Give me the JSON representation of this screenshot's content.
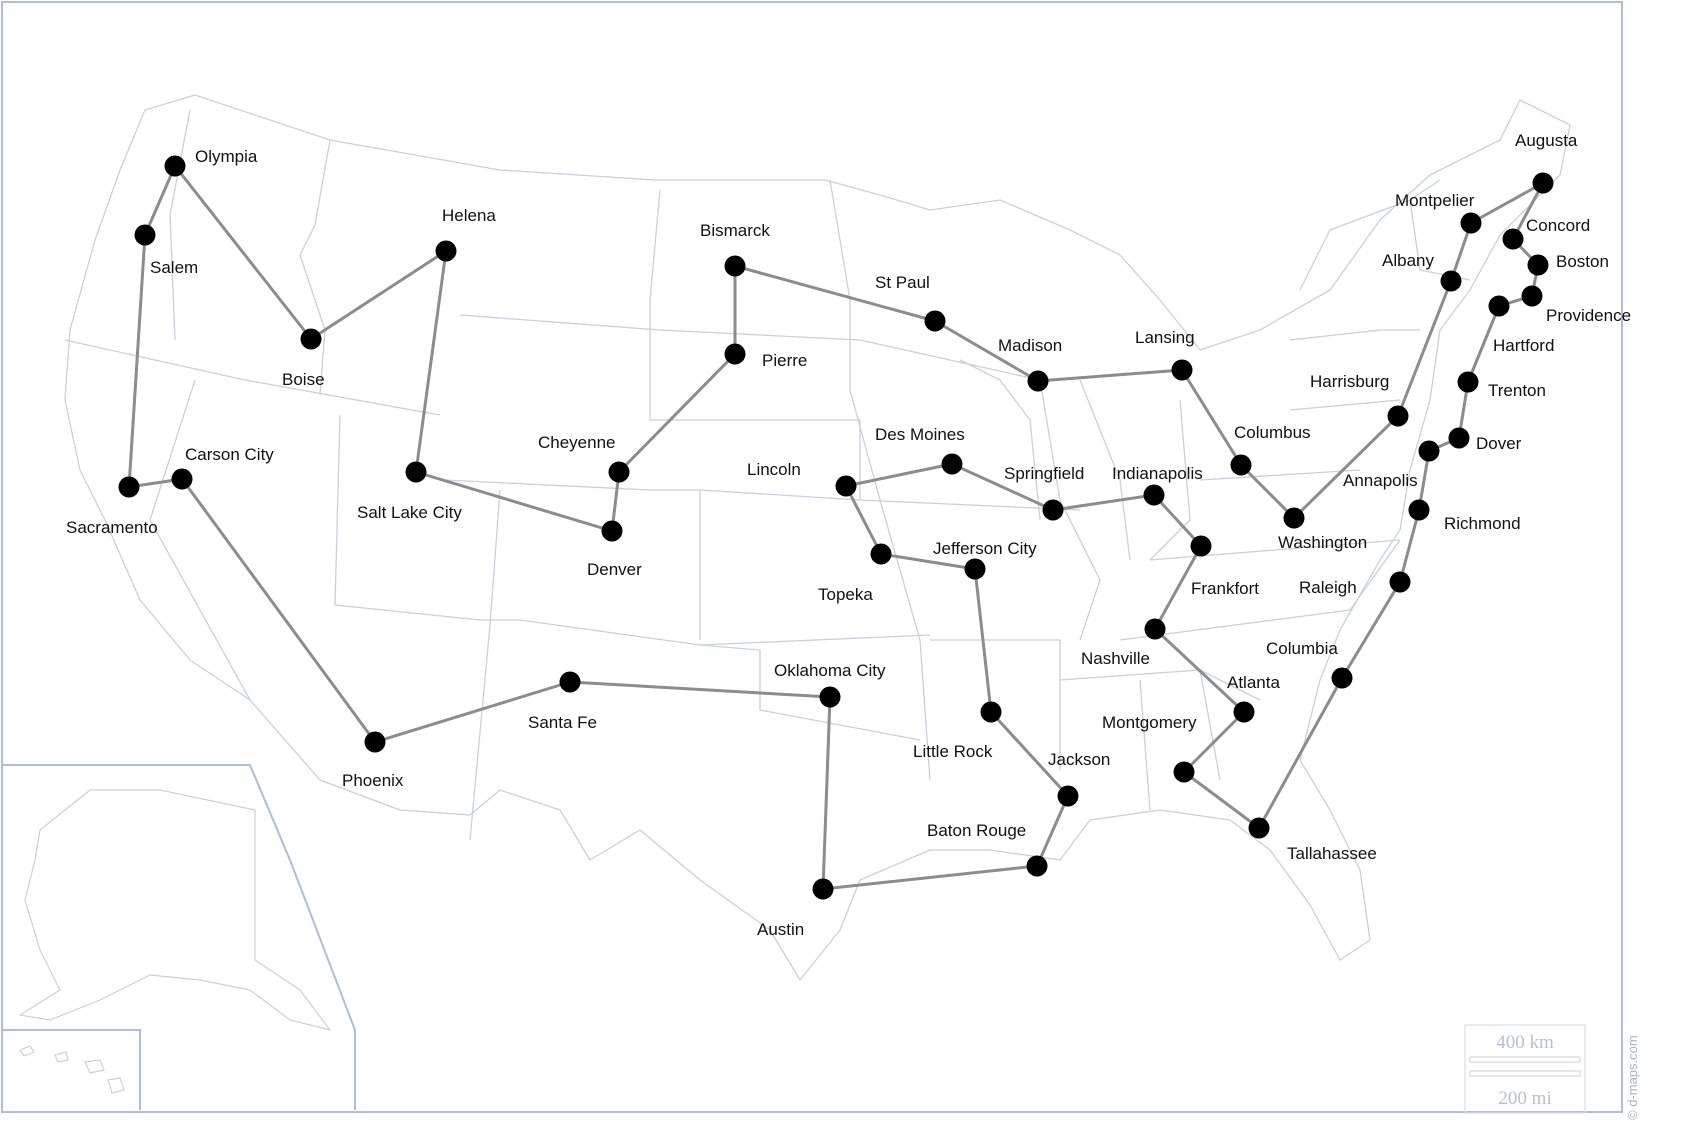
{
  "map": {
    "credit": "© d-maps.com",
    "scale_km": "400 km",
    "scale_mi": "200 mi",
    "colors": {
      "border": "#c8d0e0",
      "frame": "#aebdd8",
      "route": "#8c8c8c",
      "dot": "#000000",
      "label": "#111111"
    },
    "cities": [
      {
        "name": "Olympia"
      },
      {
        "name": "Salem"
      },
      {
        "name": "Sacramento"
      },
      {
        "name": "Carson City"
      },
      {
        "name": "Phoenix"
      },
      {
        "name": "Santa Fe"
      },
      {
        "name": "Oklahoma City"
      },
      {
        "name": "Austin"
      },
      {
        "name": "Baton Rouge"
      },
      {
        "name": "Jackson"
      },
      {
        "name": "Little Rock"
      },
      {
        "name": "Jefferson City"
      },
      {
        "name": "Topeka"
      },
      {
        "name": "Lincoln"
      },
      {
        "name": "Des Moines"
      },
      {
        "name": "Springfield"
      },
      {
        "name": "Indianapolis"
      },
      {
        "name": "Frankfort"
      },
      {
        "name": "Nashville"
      },
      {
        "name": "Atlanta"
      },
      {
        "name": "Montgomery"
      },
      {
        "name": "Tallahassee"
      },
      {
        "name": "Columbia"
      },
      {
        "name": "Raleigh"
      },
      {
        "name": "Richmond"
      },
      {
        "name": "Annapolis"
      },
      {
        "name": "Dover"
      },
      {
        "name": "Trenton"
      },
      {
        "name": "Hartford"
      },
      {
        "name": "Providence"
      },
      {
        "name": "Boston"
      },
      {
        "name": "Concord"
      },
      {
        "name": "Augusta"
      },
      {
        "name": "Montpelier"
      },
      {
        "name": "Albany"
      },
      {
        "name": "Harrisburg"
      },
      {
        "name": "Washington"
      },
      {
        "name": "Columbus"
      },
      {
        "name": "Lansing"
      },
      {
        "name": "Madison"
      },
      {
        "name": "St Paul"
      },
      {
        "name": "Bismarck"
      },
      {
        "name": "Pierre"
      },
      {
        "name": "Cheyenne"
      },
      {
        "name": "Denver"
      },
      {
        "name": "Salt Lake City"
      },
      {
        "name": "Helena"
      },
      {
        "name": "Boise"
      }
    ]
  }
}
